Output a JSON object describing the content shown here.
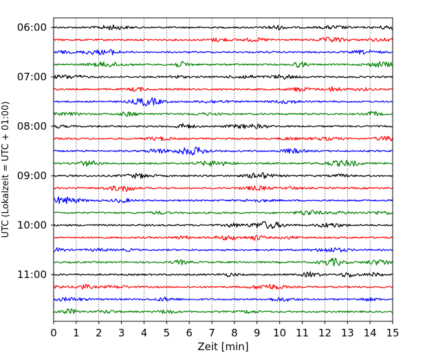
{
  "chart_data": {
    "type": "line",
    "chart_kind": "helicorder",
    "xlabel": "Zeit  [min]",
    "ylabel": "UTC (Lokalzeit = UTC + 01:00)",
    "xlim": [
      0,
      15
    ],
    "x_ticks": [
      "0",
      "1",
      "2",
      "3",
      "4",
      "5",
      "6",
      "7",
      "8",
      "9",
      "10",
      "11",
      "12",
      "13",
      "14",
      "15"
    ],
    "y_ticks": [
      "06:00",
      "07:00",
      "08:00",
      "09:00",
      "10:00",
      "11:00"
    ],
    "grid": "vertical dotted at each minute",
    "trace_interval_minutes": 15,
    "trace_count": 24,
    "trace_colors": [
      "#000000",
      "#ff0000",
      "#0000ff",
      "#008000"
    ]
  }
}
